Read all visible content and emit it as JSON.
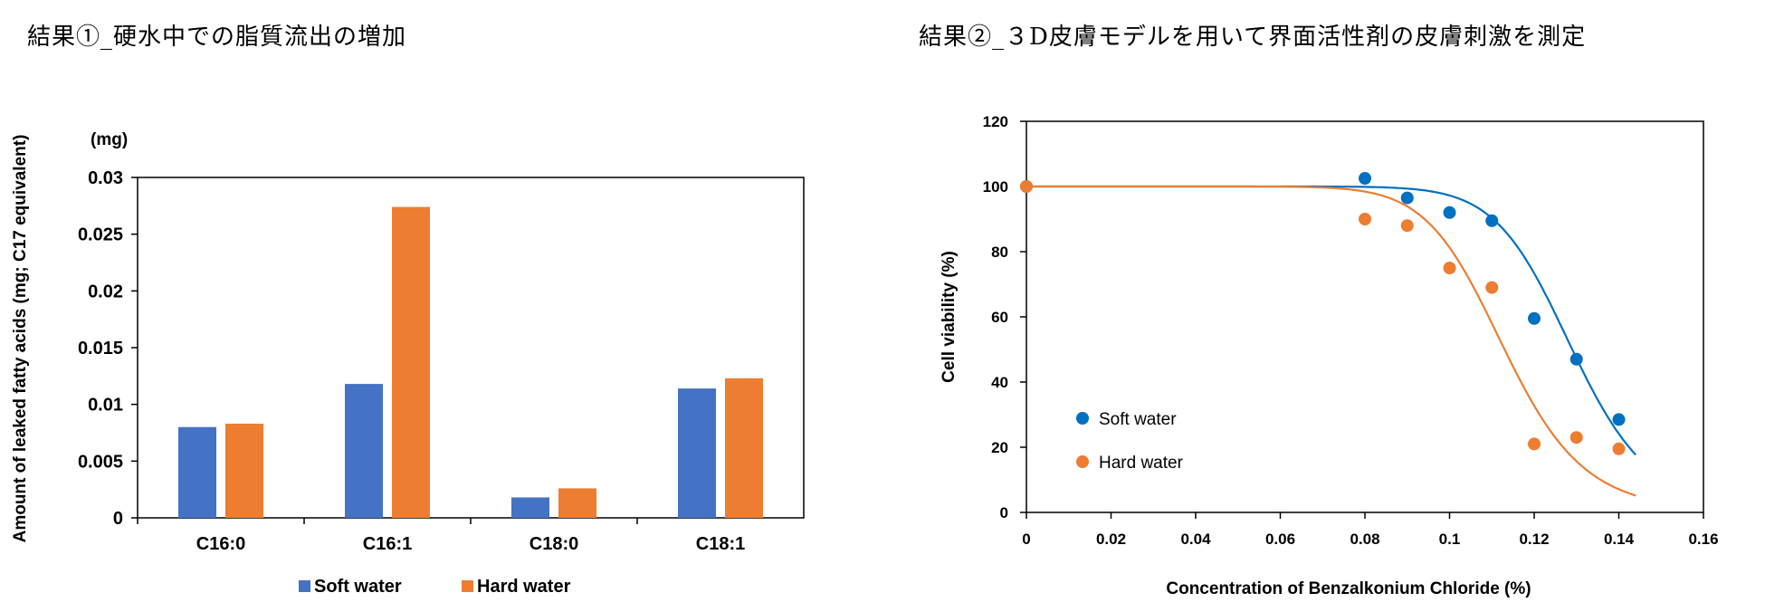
{
  "headings": {
    "left": "結果①_硬水中での脂質流出の増加",
    "right": "結果②_３D皮膚モデルを用いて界面活性剤の皮膚刺激を測定"
  },
  "chart_data": [
    {
      "type": "bar",
      "title": "",
      "unit_label": "(mg)",
      "ylabel": "Amount of leaked fatty acids (mg; C17 equivalent)",
      "xlabel": "",
      "ylim": [
        0,
        0.03
      ],
      "yticks": [
        "0",
        "0.005",
        "0.01",
        "0.015",
        "0.02",
        "0.025",
        "0.03"
      ],
      "categories": [
        "C16:0",
        "C16:1",
        "C18:0",
        "C18:1"
      ],
      "series": [
        {
          "name": "Soft water",
          "color": "#4472C4",
          "values": [
            0.008,
            0.0118,
            0.0018,
            0.0114
          ]
        },
        {
          "name": "Hard water",
          "color": "#ED7D31",
          "values": [
            0.0083,
            0.0274,
            0.0026,
            0.0123
          ]
        }
      ],
      "legend": "bottom",
      "grid": false
    },
    {
      "type": "scatter",
      "title": "",
      "xlabel": "Concentration of Benzalkonium Chloride (%)",
      "ylabel": "Cell viability (%)",
      "xlim": [
        0,
        0.16
      ],
      "ylim": [
        0,
        120
      ],
      "xticks": [
        "0",
        "0.02",
        "0.04",
        "0.06",
        "0.08",
        "0.1",
        "0.12",
        "0.14",
        "0.16"
      ],
      "yticks": [
        "0",
        "20",
        "40",
        "60",
        "80",
        "100",
        "120"
      ],
      "series": [
        {
          "name": "Soft water",
          "color": "#0070C0",
          "x": [
            0,
            0.08,
            0.09,
            0.1,
            0.11,
            0.12,
            0.13,
            0.14
          ],
          "y": [
            100,
            102.5,
            96.5,
            92,
            89.5,
            59.5,
            47,
            28.5
          ],
          "fit": {
            "ic50": 0.129,
            "slope": 14,
            "x_end": 0.144
          }
        },
        {
          "name": "Hard water",
          "color": "#ED7D31",
          "x": [
            0,
            0.08,
            0.09,
            0.1,
            0.11,
            0.12,
            0.13,
            0.14
          ],
          "y": [
            100,
            90,
            88,
            75,
            69,
            21,
            23,
            19.5
          ],
          "fit": {
            "ic50": 0.113,
            "slope": 12,
            "x_end": 0.144
          }
        }
      ],
      "legend": "inside-lower-left",
      "grid": false
    }
  ]
}
